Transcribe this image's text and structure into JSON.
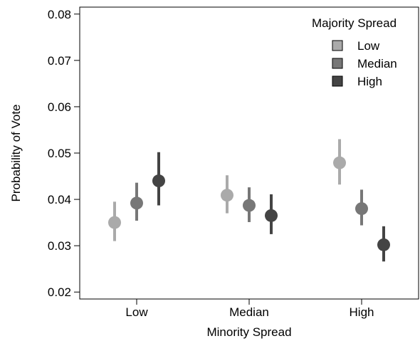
{
  "chart_data": {
    "type": "scatter",
    "title": "",
    "xlabel": "Minority Spread",
    "ylabel": "Probability of Vote",
    "categories": [
      "Low",
      "Median",
      "High"
    ],
    "ylim": [
      0.0185,
      0.0815
    ],
    "yticks": [
      0.02,
      0.03,
      0.04,
      0.05,
      0.06,
      0.07,
      0.08
    ],
    "ytick_labels": [
      "0.02",
      "0.03",
      "0.04",
      "0.05",
      "0.06",
      "0.07",
      "0.08"
    ],
    "grid": false,
    "legend": {
      "title": "Majority Spread",
      "placement": "top-right"
    },
    "series": [
      {
        "name": "Low",
        "color": "#aaaaaa",
        "values": [
          0.035,
          0.0409,
          0.0479
        ],
        "lower": [
          0.031,
          0.037,
          0.0432
        ],
        "upper": [
          0.0395,
          0.0452,
          0.053
        ]
      },
      {
        "name": "Median",
        "color": "#777777",
        "values": [
          0.0392,
          0.0387,
          0.038
        ],
        "lower": [
          0.0354,
          0.0351,
          0.0344
        ],
        "upper": [
          0.0436,
          0.0426,
          0.0421
        ]
      },
      {
        "name": "High",
        "color": "#444444",
        "values": [
          0.044,
          0.0365,
          0.0302
        ],
        "lower": [
          0.0387,
          0.0325,
          0.0266
        ],
        "upper": [
          0.0502,
          0.0411,
          0.0342
        ]
      }
    ]
  }
}
